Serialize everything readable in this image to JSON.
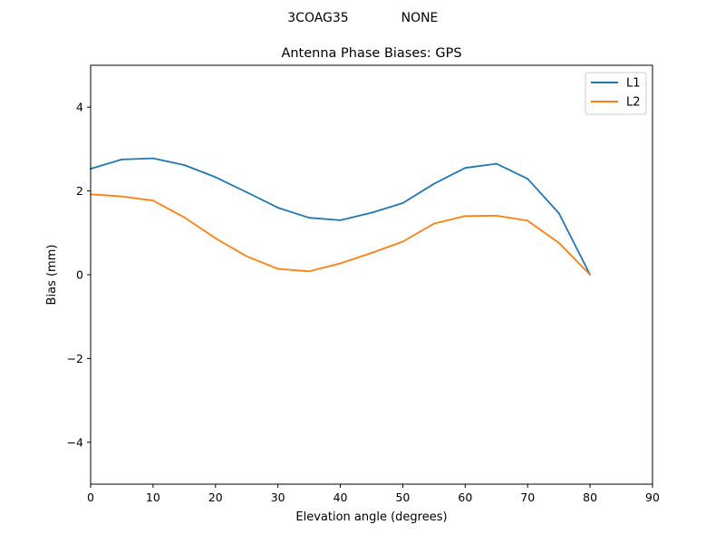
{
  "figure": {
    "suptitle_antenna": "3COAG35",
    "suptitle_radome": "NONE"
  },
  "chart_data": {
    "type": "line",
    "title": "Antenna Phase Biases: GPS",
    "xlabel": "Elevation angle (degrees)",
    "ylabel": "Bias (mm)",
    "xlim": [
      0,
      90
    ],
    "ylim": [
      -5,
      5
    ],
    "xticks": [
      0,
      10,
      20,
      30,
      40,
      50,
      60,
      70,
      80,
      90
    ],
    "yticks": [
      -4,
      -2,
      0,
      2,
      4
    ],
    "grid": false,
    "legend_position": "top-right",
    "x": [
      0,
      5,
      10,
      15,
      20,
      25,
      30,
      35,
      40,
      45,
      50,
      55,
      60,
      65,
      70,
      75,
      80
    ],
    "series": [
      {
        "name": "L1",
        "color": "#1f77b4",
        "values": [
          2.53,
          2.75,
          2.78,
          2.62,
          2.33,
          1.97,
          1.6,
          1.36,
          1.3,
          1.48,
          1.71,
          2.17,
          2.55,
          2.65,
          2.29,
          1.47,
          0.0
        ]
      },
      {
        "name": "L2",
        "color": "#ff7f0e",
        "values": [
          1.92,
          1.87,
          1.77,
          1.37,
          0.87,
          0.44,
          0.14,
          0.08,
          0.27,
          0.52,
          0.79,
          1.22,
          1.4,
          1.41,
          1.29,
          0.76,
          0.0
        ]
      }
    ]
  }
}
